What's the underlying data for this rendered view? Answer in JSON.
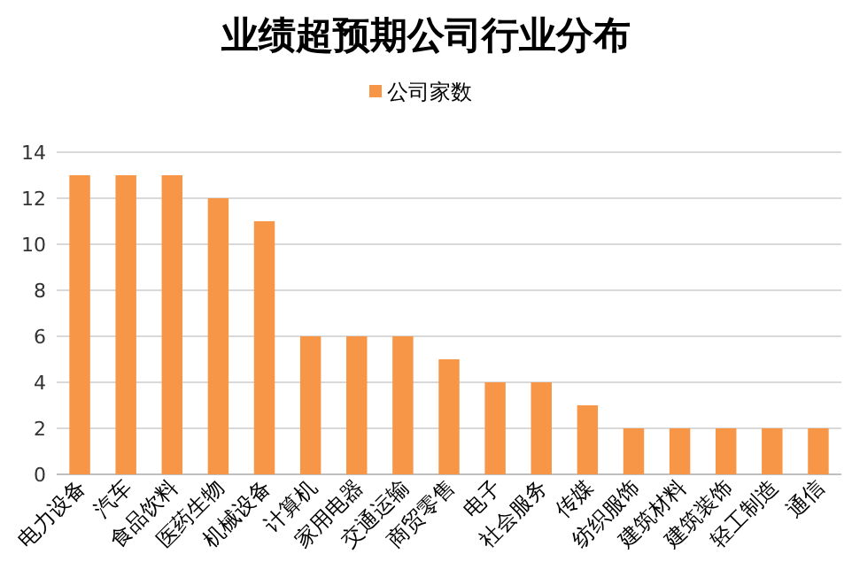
{
  "chart_data": {
    "type": "bar",
    "title": "业绩超预期公司行业分布",
    "categories": [
      "电力设备",
      "汽车",
      "食品饮料",
      "医药生物",
      "机械设备",
      "计算机",
      "家用电器",
      "交通运输",
      "商贸零售",
      "电子",
      "社会服务",
      "传媒",
      "纺织服饰",
      "建筑材料",
      "建筑装饰",
      "轻工制造",
      "通信"
    ],
    "series": [
      {
        "name": "公司家数",
        "color": "#f79646",
        "values": [
          13,
          13,
          13,
          12,
          11,
          6,
          6,
          6,
          5,
          4,
          4,
          3,
          2,
          2,
          2,
          2,
          2
        ]
      }
    ],
    "ylim": [
      0,
      14
    ],
    "yticks": [
      0,
      2,
      4,
      6,
      8,
      10,
      12,
      14
    ],
    "grid": "y",
    "legend": "top"
  }
}
